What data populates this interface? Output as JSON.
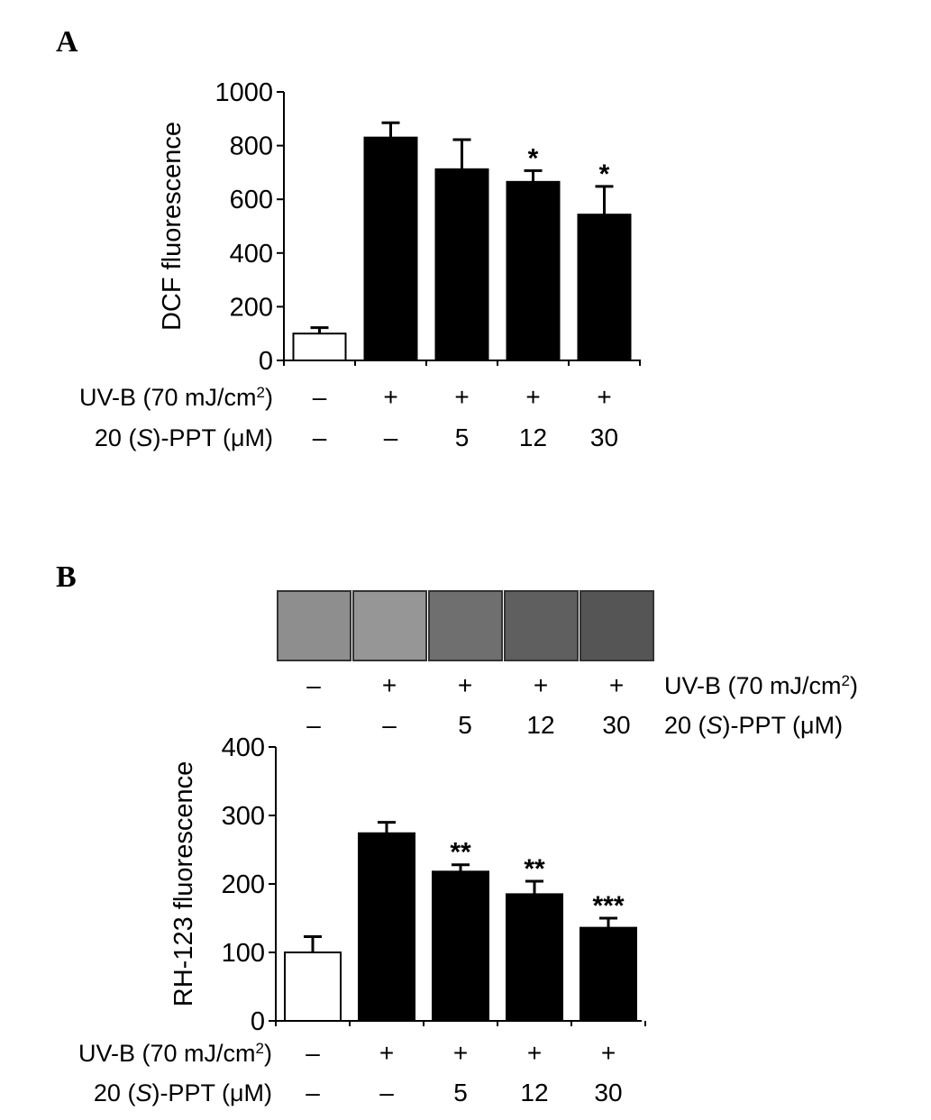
{
  "panels": [
    {
      "letter": "A"
    },
    {
      "letter": "B"
    }
  ],
  "chart_data": [
    {
      "type": "bar",
      "panel": "A",
      "ylabel": "DCF fluorescence",
      "ylim": [
        0,
        1000
      ],
      "yticks": [
        0,
        200,
        400,
        600,
        800,
        1000
      ],
      "values": [
        100,
        830,
        712,
        665,
        543
      ],
      "errors": [
        22,
        55,
        110,
        42,
        105
      ],
      "significance": [
        "",
        "",
        "",
        "*",
        "*"
      ],
      "bar_colors": [
        "#ffffff",
        "#000000",
        "#000000",
        "#000000",
        "#000000"
      ],
      "treatments": [
        {
          "label": "UV-B (70 mJ/cm",
          "superscript": "2",
          "label_end": ")",
          "values": [
            "–",
            "+",
            "+",
            "+",
            "+"
          ]
        },
        {
          "label_pre": "20 (",
          "label_italic": "S",
          "label_post": ")-PPT (μM)",
          "values": [
            "–",
            "–",
            "5",
            "12",
            "30"
          ]
        }
      ]
    },
    {
      "type": "bar",
      "panel": "B",
      "ylabel": "RH-123  fluorescence",
      "ylim": [
        0,
        400
      ],
      "yticks": [
        0,
        100,
        200,
        300,
        400
      ],
      "values": [
        100,
        274,
        218,
        185,
        136
      ],
      "errors": [
        23,
        16,
        10,
        19,
        14
      ],
      "significance": [
        "",
        "",
        "**",
        "**",
        "***"
      ],
      "bar_colors": [
        "#ffffff",
        "#000000",
        "#000000",
        "#000000",
        "#000000"
      ],
      "micrograph_shades": [
        "#8e8e8e",
        "#969696",
        "#6f6f6f",
        "#5f5f5f",
        "#555555"
      ],
      "treatments_top": [
        {
          "label": "UV-B (70 mJ/cm",
          "superscript": "2",
          "label_end": ")",
          "values": [
            "–",
            "+",
            "+",
            "+",
            "+"
          ]
        },
        {
          "label_pre": "20 (",
          "label_italic": "S",
          "label_post": ")-PPT (μM)",
          "values": [
            "–",
            "–",
            "5",
            "12",
            "30"
          ]
        }
      ],
      "treatments": [
        {
          "label": "UV-B (70 mJ/cm",
          "superscript": "2",
          "label_end": ")",
          "values": [
            "–",
            "+",
            "+",
            "+",
            "+"
          ]
        },
        {
          "label_pre": "20 (",
          "label_italic": "S",
          "label_post": ")-PPT (μM)",
          "values": [
            "–",
            "–",
            "5",
            "12",
            "30"
          ]
        }
      ]
    }
  ]
}
